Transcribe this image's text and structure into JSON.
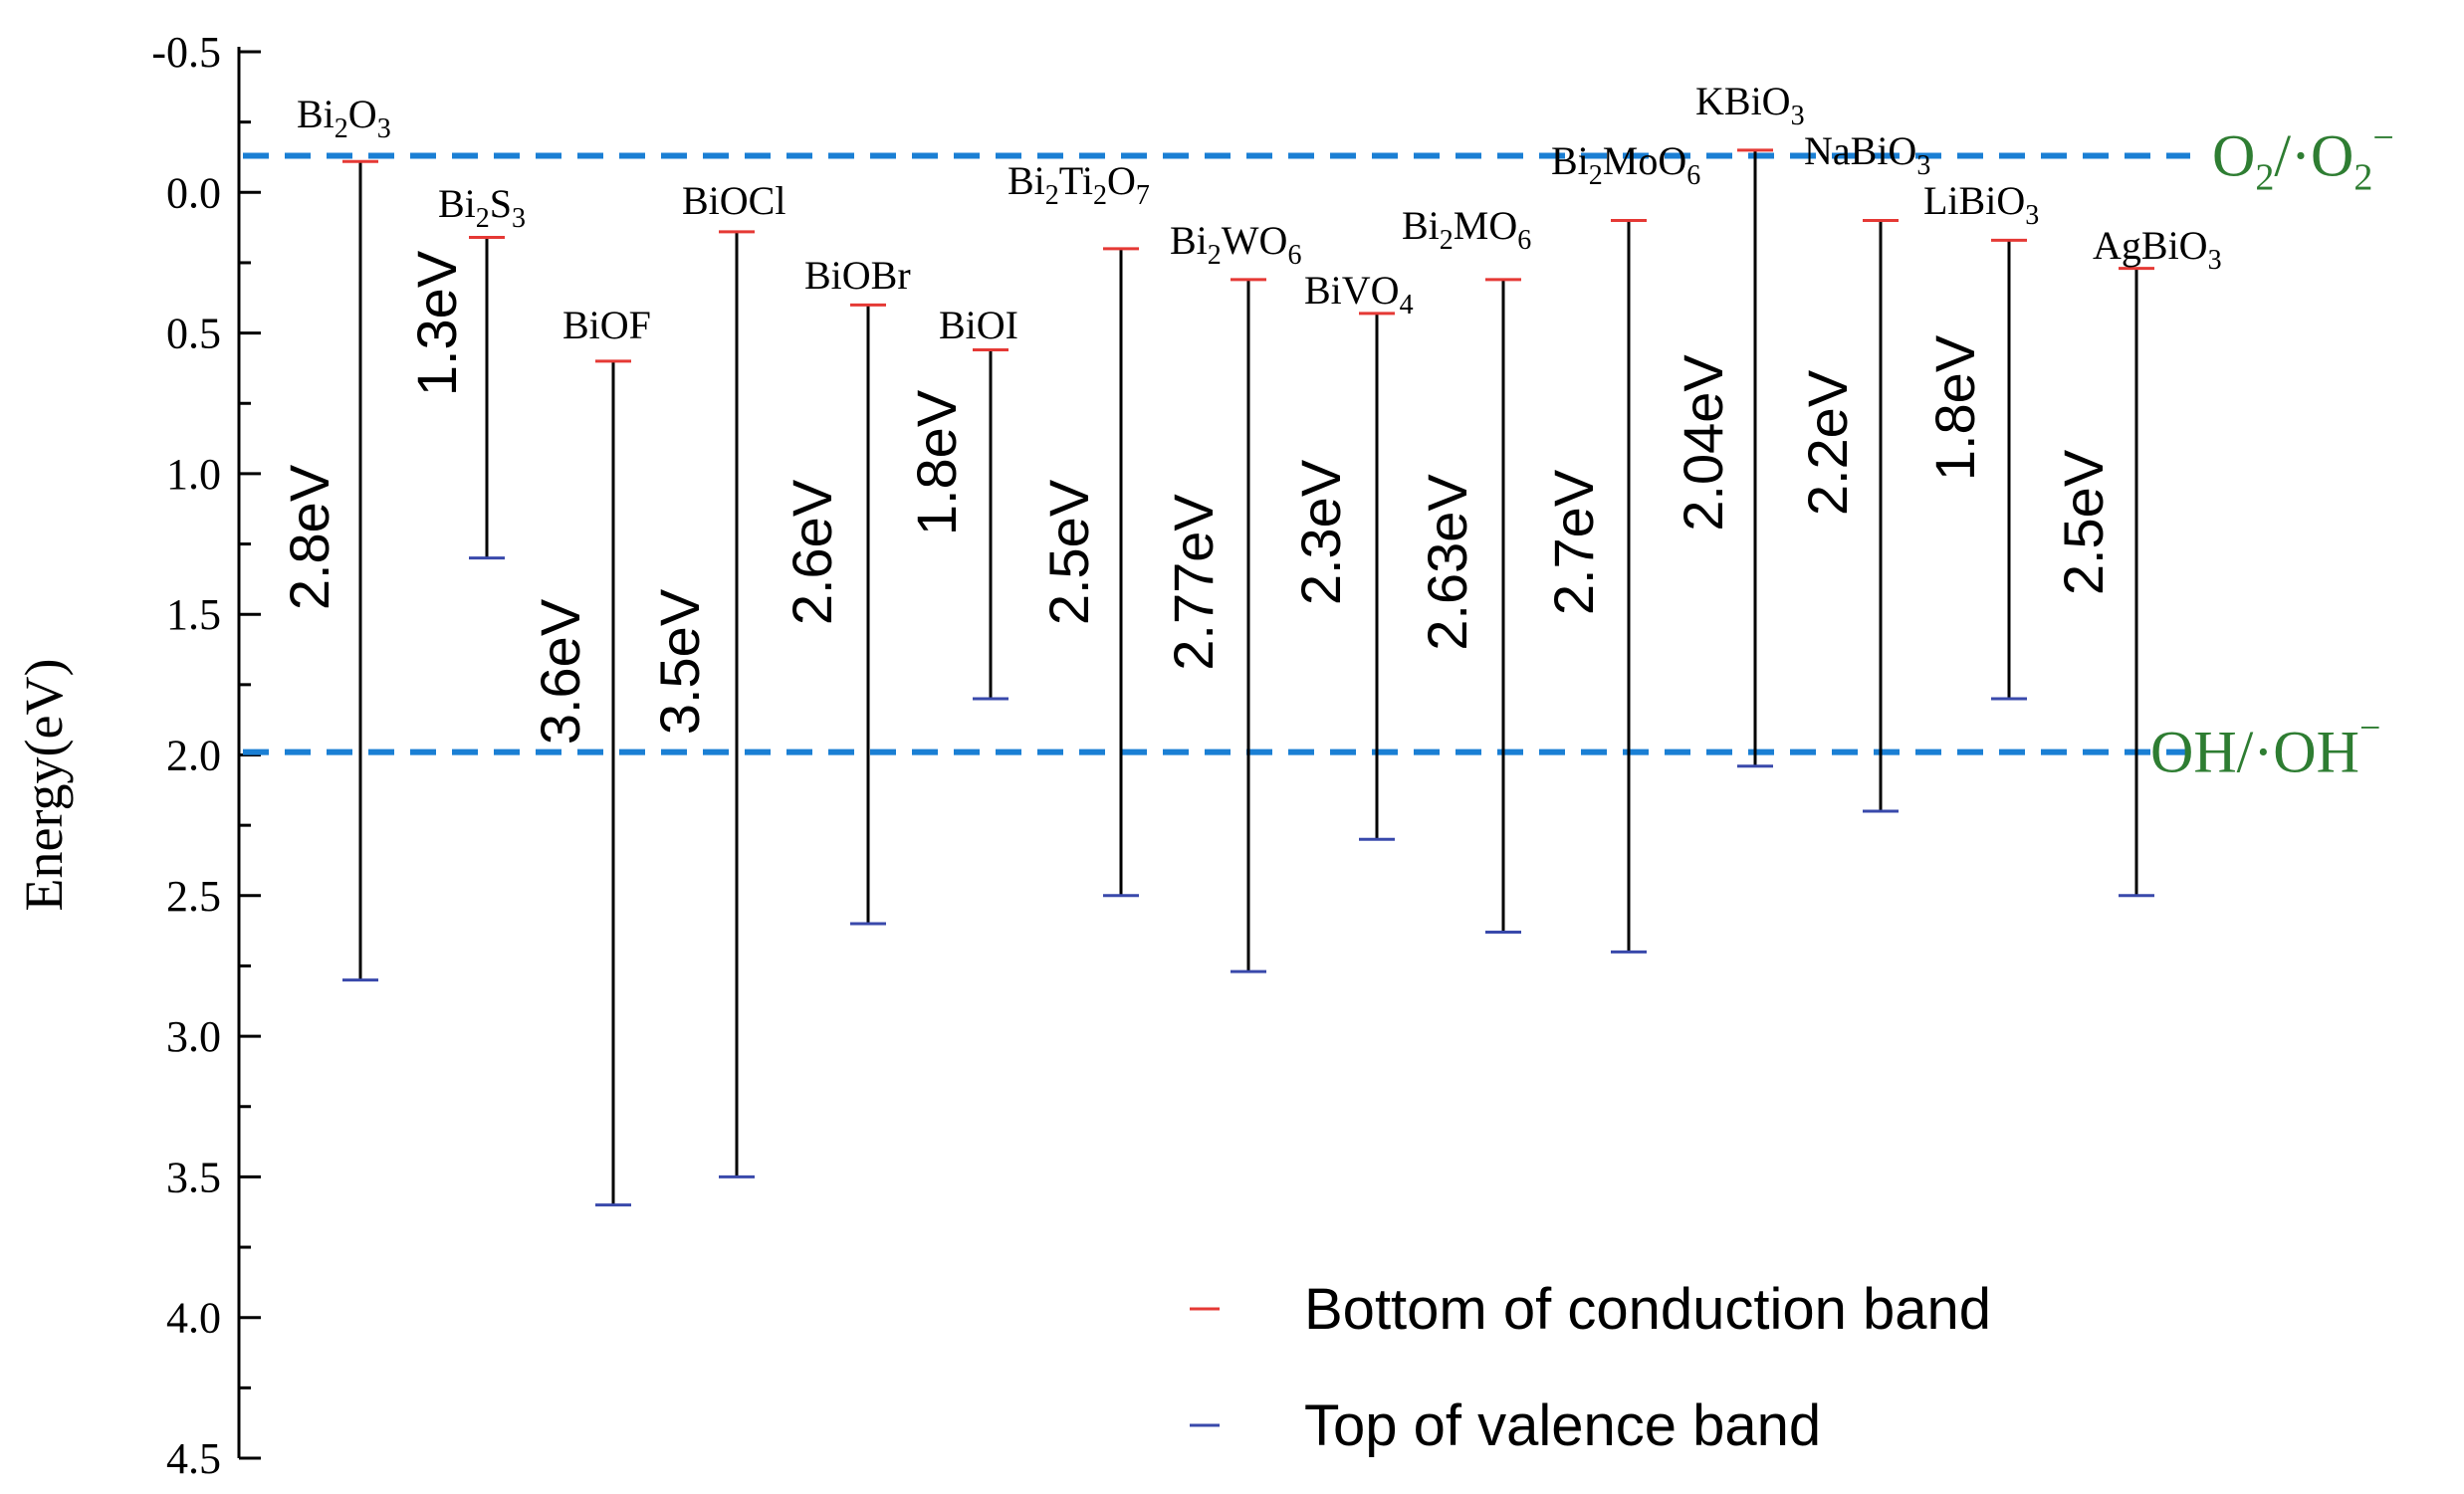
{
  "chart_data": {
    "type": "band-diagram",
    "title": "",
    "xlabel": "",
    "ylabel": "Energy(eV)",
    "ylim": [
      -0.5,
      4.5
    ],
    "y_inverted": true,
    "y_ticks": [
      "-0.5",
      "0.0",
      "0.5",
      "1.0",
      "1.5",
      "2.0",
      "2.5",
      "3.0",
      "3.5",
      "4.0",
      "4.5"
    ],
    "y_tick_values": [
      -0.5,
      0.0,
      0.5,
      1.0,
      1.5,
      2.0,
      2.5,
      3.0,
      3.5,
      4.0,
      4.5
    ],
    "series": [
      {
        "name": "Bi2O3",
        "label_main": "Bi",
        "label_sub1": "2",
        "label_mid": "O",
        "label_sub2": "3",
        "label_end": "",
        "cb": -0.11,
        "vb": 2.8,
        "gap": "2.8eV"
      },
      {
        "name": "Bi2S3",
        "label_main": "Bi",
        "label_sub1": "2",
        "label_mid": "S",
        "label_sub2": "3",
        "label_end": "",
        "cb": 0.16,
        "vb": 1.3,
        "gap": "1.3eV"
      },
      {
        "name": "BiOF",
        "label_main": "BiOF",
        "cb": 0.6,
        "vb": 3.6,
        "gap": "3.6eV"
      },
      {
        "name": "BiOCl",
        "label_main": "BiOCl",
        "cb": 0.14,
        "vb": 3.5,
        "gap": "3.5eV"
      },
      {
        "name": "BiOBr",
        "label_main": "BiOBr",
        "cb": 0.4,
        "vb": 2.6,
        "gap": "2.6eV"
      },
      {
        "name": "BiOI",
        "label_main": "BiOI",
        "cb": 0.56,
        "vb": 1.8,
        "gap": "1.8eV"
      },
      {
        "name": "Bi2Ti2O7",
        "label_main": "Bi",
        "label_sub1": "2",
        "label_mid": "Ti",
        "label_sub2": "2",
        "label_end": "O",
        "label_sub3": "7",
        "cb": 0.2,
        "vb": 2.5,
        "gap": "2.5eV"
      },
      {
        "name": "Bi2WO6",
        "label_main": "Bi",
        "label_sub1": "2",
        "label_mid": "WO",
        "label_sub2": "6",
        "label_end": "",
        "cb": 0.31,
        "vb": 2.77,
        "gap": "2.77eV"
      },
      {
        "name": "BiVO4",
        "label_main": "BiVO",
        "label_sub1": "4",
        "cb": 0.43,
        "vb": 2.3,
        "gap": "2.3eV"
      },
      {
        "name": "Bi2MO6",
        "label_main": "Bi",
        "label_sub1": "2",
        "label_mid": "MO",
        "label_sub2": "6",
        "label_end": "",
        "cb": 0.31,
        "vb": 2.63,
        "gap": "2.63eV"
      },
      {
        "name": "Bi2MoO6",
        "label_main": "Bi",
        "label_sub1": "2",
        "label_mid": "MoO",
        "label_sub2": "6",
        "label_end": "",
        "cb": 0.1,
        "vb": 2.7,
        "gap": "2.7eV"
      },
      {
        "name": "KBiO3",
        "label_main": "KBiO",
        "label_sub1": "3",
        "cb": -0.15,
        "vb": 2.04,
        "gap": "2.04eV"
      },
      {
        "name": "NaBiO3",
        "label_main": "NaBiO",
        "label_sub1": "3",
        "cb": 0.1,
        "vb": 2.2,
        "gap": "2.2eV"
      },
      {
        "name": "LiBiO3",
        "label_main": "LiBiO",
        "label_sub1": "3",
        "cb": 0.17,
        "vb": 1.8,
        "gap": "1.8eV"
      },
      {
        "name": "AgBiO3",
        "label_main": "AgBiO",
        "label_sub1": "3",
        "cb": 0.27,
        "vb": 2.5,
        "gap": "2.5eV"
      }
    ],
    "reference_lines": [
      {
        "name": "O2/O2-",
        "value": -0.13,
        "label_a": "O",
        "label_a_sub": "2",
        "label_b": "/·O",
        "label_b_sub": "2",
        "label_b_sup": "−"
      },
      {
        "name": "OH/OH-",
        "value": 1.99,
        "label_a": "OH/·OH",
        "label_a_sup": "−"
      }
    ],
    "legend": {
      "placement": "bottom-right",
      "items": [
        {
          "label": "Bottom of conduction band",
          "color": "#e53935"
        },
        {
          "label": "Top of valence band",
          "color": "#3949ab"
        }
      ]
    },
    "colors": {
      "cb_mark": "#e53935",
      "vb_mark": "#3949ab",
      "bar": "#000000",
      "ref_line": "#1a7fd4",
      "ref_label": "#2e7d32"
    }
  }
}
